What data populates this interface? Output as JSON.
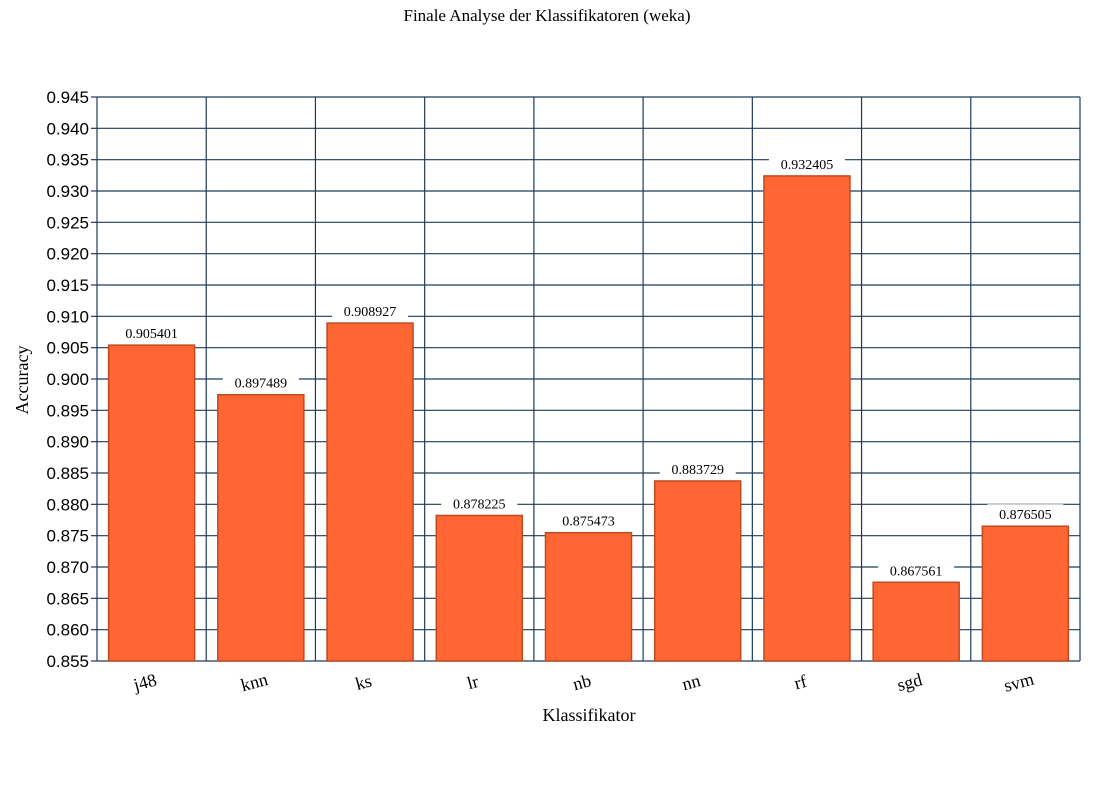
{
  "chart_data": {
    "type": "bar",
    "title": "Finale Analyse der Klassifikatoren (weka)",
    "xlabel": "Klassifikator",
    "ylabel": "Accuracy",
    "categories": [
      "j48",
      "knn",
      "ks",
      "lr",
      "nb",
      "nn",
      "rf",
      "sgd",
      "svm"
    ],
    "values": [
      0.905401,
      0.897489,
      0.908927,
      0.878225,
      0.875473,
      0.883729,
      0.932405,
      0.867561,
      0.876505
    ],
    "data_labels": [
      "0.905401",
      "0.897489",
      "0.908927",
      "0.878225",
      "0.875473",
      "0.883729",
      "0.932405",
      "0.867561",
      "0.876505"
    ],
    "ylim": [
      0.855,
      0.945
    ],
    "yticks": [
      0.855,
      0.86,
      0.865,
      0.87,
      0.875,
      0.88,
      0.885,
      0.89,
      0.895,
      0.9,
      0.905,
      0.91,
      0.915,
      0.92,
      0.925,
      0.93,
      0.935,
      0.94,
      0.945
    ],
    "ytick_labels": [
      "0.855",
      "0.860",
      "0.865",
      "0.870",
      "0.875",
      "0.880",
      "0.885",
      "0.890",
      "0.895",
      "0.900",
      "0.905",
      "0.910",
      "0.915",
      "0.920",
      "0.925",
      "0.930",
      "0.935",
      "0.940",
      "0.945"
    ],
    "grid": true,
    "legend": "none",
    "colors": {
      "bar_fill": "#ff6633",
      "bar_edge": "#c04a20",
      "grid": "#1f3b5c",
      "label_box": "#ffffff"
    }
  }
}
